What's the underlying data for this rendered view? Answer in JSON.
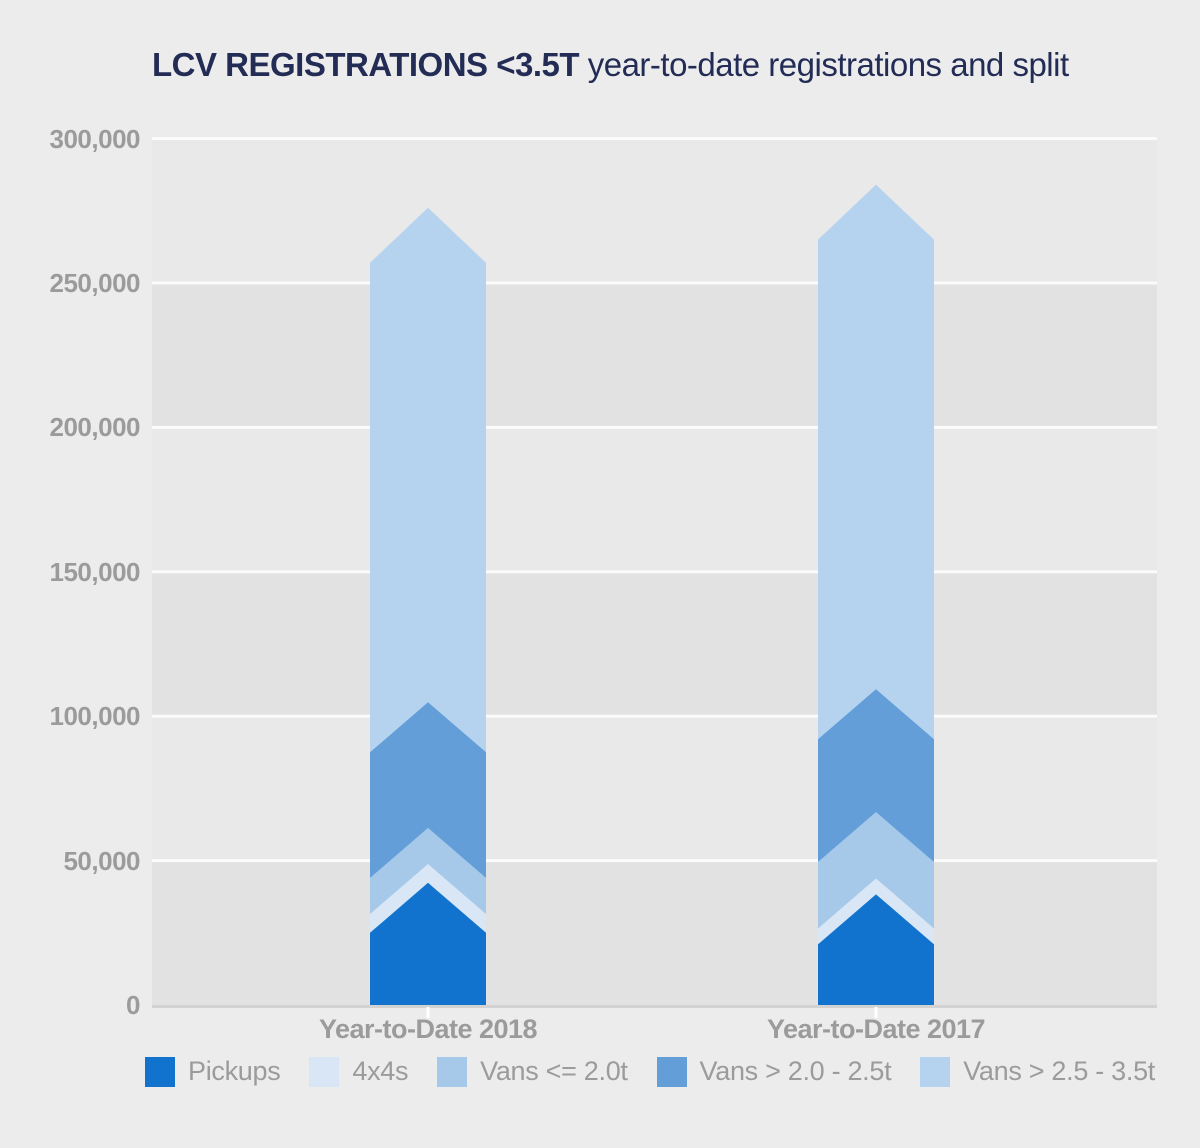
{
  "title": {
    "highlight": "LCV REGISTRATIONS <3.5T",
    "rest": " year-to-date registrations and split"
  },
  "colors": {
    "background": "#ececec",
    "band_dark": "#e2e2e2",
    "band_light": "#e9e9e9",
    "gridline": "#fbfbfb",
    "baseline": "#d2d2d2",
    "tick_mark": "#ffffff",
    "axis_text": "#9b9b9b",
    "title_text": "#222c55",
    "legend_text": "#9b9b9b"
  },
  "y_axis": {
    "tick_labels": [
      "0",
      "50,000",
      "100,000",
      "150,000",
      "200,000",
      "250,000",
      "300,000"
    ],
    "tick_step": 50000,
    "max": 300000
  },
  "x_axis": {
    "categories": [
      "Year-to-Date 2018",
      "Year-to-Date 2017"
    ]
  },
  "legend": {
    "items": [
      {
        "label": "Pickups",
        "color": "#1173cd"
      },
      {
        "label": "4x4s",
        "color": "#d8e6f5"
      },
      {
        "label": "Vans <= 2.0t",
        "color": "#a6c9e9"
      },
      {
        "label": "Vans > 2.0 - 2.5t",
        "color": "#639ed8"
      },
      {
        "label": "Vans > 2.5 - 3.5t",
        "color": "#b5d3ef"
      }
    ]
  },
  "chart_data": {
    "type": "bar",
    "subtype": "stacked-chevron-arrows",
    "title": "LCV REGISTRATIONS <3.5T year-to-date registrations and split",
    "xlabel": "",
    "ylabel": "",
    "ylim": [
      0,
      300000
    ],
    "grid": "horizontal-white-lines-with-alternating-bands",
    "legend_position": "bottom",
    "categories": [
      "Year-to-Date 2018",
      "Year-to-Date 2017"
    ],
    "series": [
      {
        "name": "Pickups",
        "color": "#1173cd",
        "values": [
          25000,
          21000
        ]
      },
      {
        "name": "4x4s",
        "color": "#d8e6f5",
        "values": [
          6500,
          5500
        ]
      },
      {
        "name": "Vans <= 2.0t",
        "color": "#a6c9e9",
        "values": [
          12500,
          23000
        ]
      },
      {
        "name": "Vans > 2.0 - 2.5t",
        "color": "#639ed8",
        "values": [
          43500,
          42500
        ]
      },
      {
        "name": "Vans > 2.5 - 3.5t",
        "color": "#b5d3ef",
        "values": [
          169500,
          173000
        ]
      }
    ],
    "totals": [
      257000,
      265000
    ]
  }
}
